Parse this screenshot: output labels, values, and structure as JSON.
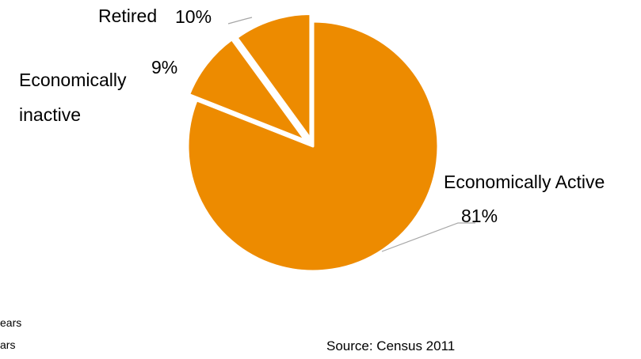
{
  "chart_data": {
    "type": "pie",
    "categories": [
      "Economically Active",
      "Economically inactive",
      "Retired"
    ],
    "values": [
      81,
      9,
      10
    ],
    "value_labels": [
      "81%",
      "9%",
      "10%"
    ],
    "slice_color": "#ED8B00",
    "separator_color": "#FFFFFF",
    "leader_line_color": "#A6A6A6",
    "exploded": true,
    "title": "",
    "legend": "none"
  },
  "labels": {
    "active_line1": "Economically Active",
    "inactive_line1": "Economically",
    "inactive_line2": "inactive",
    "retired": "Retired"
  },
  "footer": {
    "source": "Source: Census 2011",
    "fragment1": "ears",
    "fragment2": "ars"
  }
}
